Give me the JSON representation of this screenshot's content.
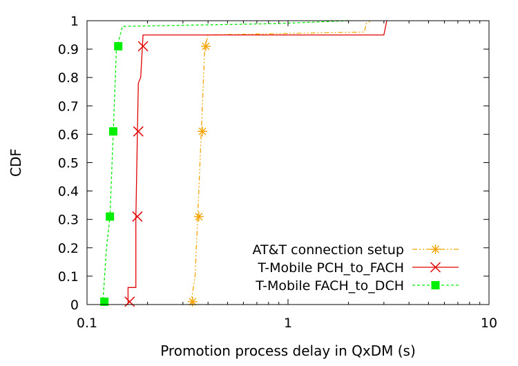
{
  "chart_data": {
    "type": "line",
    "title": "",
    "xlabel": "Promotion process delay in QxDM (s)",
    "ylabel": "CDF",
    "xscale": "log",
    "xlim": [
      0.1,
      10
    ],
    "ylim": [
      0,
      1
    ],
    "xticks": [
      {
        "value": 0.1,
        "label": "0.1"
      },
      {
        "value": 1,
        "label": "1"
      },
      {
        "value": 10,
        "label": "10"
      }
    ],
    "yticks": [
      {
        "value": 0,
        "label": "0"
      },
      {
        "value": 0.1,
        "label": "0.1"
      },
      {
        "value": 0.2,
        "label": "0.2"
      },
      {
        "value": 0.3,
        "label": "0.3"
      },
      {
        "value": 0.4,
        "label": "0.4"
      },
      {
        "value": 0.5,
        "label": "0.5"
      },
      {
        "value": 0.6,
        "label": "0.6"
      },
      {
        "value": 0.7,
        "label": "0.7"
      },
      {
        "value": 0.8,
        "label": "0.8"
      },
      {
        "value": 0.9,
        "label": "0.9"
      },
      {
        "value": 1,
        "label": "1"
      }
    ],
    "grid": false,
    "legend_position": "bottom-right",
    "series": [
      {
        "name": "AT&T connection setup",
        "color": "#f4a300",
        "dash": "dash-dot-dot",
        "marker": "asterisk",
        "points": [
          [
            0.33,
            0
          ],
          [
            0.33,
            0.01
          ],
          [
            0.345,
            0.1
          ],
          [
            0.355,
            0.3
          ],
          [
            0.37,
            0.6
          ],
          [
            0.385,
            0.9
          ],
          [
            0.4,
            0.95
          ],
          [
            2.4,
            0.96
          ],
          [
            2.45,
            0.99
          ],
          [
            2.6,
            1
          ]
        ],
        "marker_points": [
          [
            0.335,
            0.01
          ],
          [
            0.36,
            0.31
          ],
          [
            0.375,
            0.61
          ],
          [
            0.39,
            0.91
          ]
        ]
      },
      {
        "name": "T-Mobile PCH_to_FACH",
        "color": "#e00000",
        "dash": "solid",
        "marker": "cross",
        "points": [
          [
            0.16,
            0
          ],
          [
            0.16,
            0.06
          ],
          [
            0.175,
            0.06
          ],
          [
            0.175,
            0.3
          ],
          [
            0.178,
            0.6
          ],
          [
            0.18,
            0.78
          ],
          [
            0.185,
            0.8
          ],
          [
            0.19,
            0.95
          ],
          [
            3.0,
            0.95
          ],
          [
            3.1,
            1
          ]
        ],
        "marker_points": [
          [
            0.163,
            0.01
          ],
          [
            0.178,
            0.31
          ],
          [
            0.18,
            0.61
          ],
          [
            0.19,
            0.91
          ]
        ]
      },
      {
        "name": "T-Mobile FACH_to_DCH",
        "color": "#00ee00",
        "dash": "dashed",
        "marker": "filled-square",
        "points": [
          [
            0.12,
            0
          ],
          [
            0.12,
            0.01
          ],
          [
            0.125,
            0.2
          ],
          [
            0.13,
            0.31
          ],
          [
            0.135,
            0.6
          ],
          [
            0.14,
            0.9
          ],
          [
            0.145,
            0.94
          ],
          [
            0.15,
            0.98
          ],
          [
            0.9,
            0.99
          ],
          [
            2.0,
            1
          ]
        ],
        "marker_points": [
          [
            0.122,
            0.01
          ],
          [
            0.13,
            0.31
          ],
          [
            0.135,
            0.61
          ],
          [
            0.143,
            0.91
          ]
        ]
      }
    ]
  }
}
